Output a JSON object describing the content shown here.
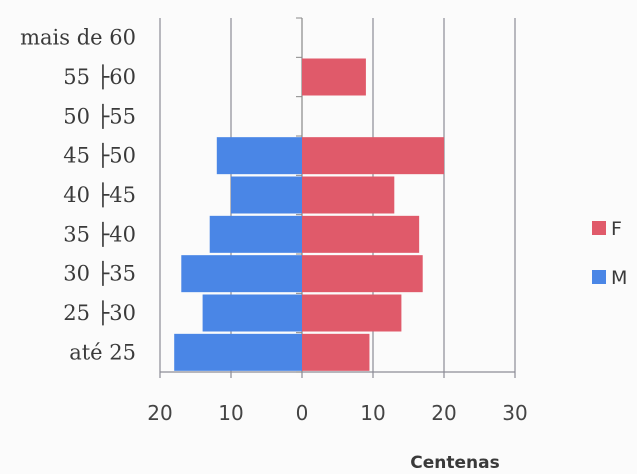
{
  "chart_data": {
    "type": "bar",
    "orientation": "horizontal",
    "categories": [
      "até 25",
      "25 ├30",
      "30 ├35",
      "35 ├40",
      "40 ├45",
      "45 ├50",
      "50 ├55",
      "55 ├60",
      "mais de 60"
    ],
    "series": [
      {
        "name": "F",
        "color": "#e05a6a",
        "values": [
          9.5,
          14,
          17,
          16.5,
          13,
          20,
          0,
          9,
          0
        ]
      },
      {
        "name": "M",
        "color": "#4a86e6",
        "values": [
          18,
          14,
          17,
          13,
          10,
          12,
          0,
          0,
          0
        ]
      }
    ],
    "xlabel": "Centenas",
    "xlim": [
      -20,
      30
    ],
    "x_ticks": [
      "20",
      "10",
      "0",
      "10",
      "20",
      "30"
    ],
    "grid": true,
    "legend_position": "right"
  }
}
